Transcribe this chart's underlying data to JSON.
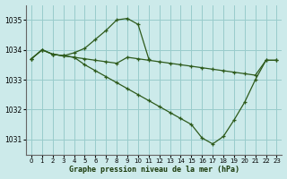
{
  "title": "Graphe pression niveau de la mer (hPa)",
  "bg_color": "#cceaea",
  "grid_color": "#99cccc",
  "line_color": "#2d5a1b",
  "xlim": [
    -0.5,
    23.5
  ],
  "ylim": [
    1030.5,
    1035.5
  ],
  "yticks": [
    1031,
    1032,
    1033,
    1034,
    1035
  ],
  "xticks": [
    0,
    1,
    2,
    3,
    4,
    5,
    6,
    7,
    8,
    9,
    10,
    11,
    12,
    13,
    14,
    15,
    16,
    17,
    18,
    19,
    20,
    21,
    22,
    23
  ],
  "series": [
    {
      "x": [
        0,
        1,
        2,
        3,
        4,
        5,
        6,
        7,
        8,
        9,
        10,
        11,
        12,
        13,
        14,
        15,
        16,
        17,
        18,
        19,
        20,
        21,
        22,
        23
      ],
      "y": [
        1033.7,
        1034.0,
        1033.85,
        1033.8,
        1033.75,
        1033.7,
        1033.65,
        1033.6,
        1033.55,
        1033.75,
        1033.7,
        1033.65,
        1033.6,
        1033.55,
        1033.5,
        1033.45,
        1033.4,
        1033.35,
        1033.3,
        1033.25,
        1033.2,
        1033.15,
        1033.65,
        1033.65
      ]
    },
    {
      "x": [
        0,
        1,
        2,
        3,
        4,
        5,
        6,
        7,
        8,
        9,
        10,
        11
      ],
      "y": [
        1033.7,
        1034.0,
        1033.85,
        1033.8,
        1033.9,
        1034.05,
        1034.35,
        1034.65,
        1035.0,
        1035.05,
        1034.85,
        1033.7
      ]
    },
    {
      "x": [
        0,
        1,
        2,
        3,
        4,
        5,
        6,
        7,
        8,
        9,
        10,
        11,
        12,
        13,
        14,
        15,
        16,
        17,
        18,
        19,
        20,
        21,
        22,
        23
      ],
      "y": [
        1033.7,
        1034.0,
        1033.85,
        1033.8,
        1033.75,
        1033.5,
        1033.3,
        1033.1,
        1032.9,
        1032.7,
        1032.5,
        1032.3,
        1032.1,
        1031.9,
        1031.7,
        1031.5,
        1031.05,
        1030.85,
        1031.1,
        1031.65,
        1032.25,
        1033.0,
        1033.65,
        1033.65
      ]
    }
  ]
}
